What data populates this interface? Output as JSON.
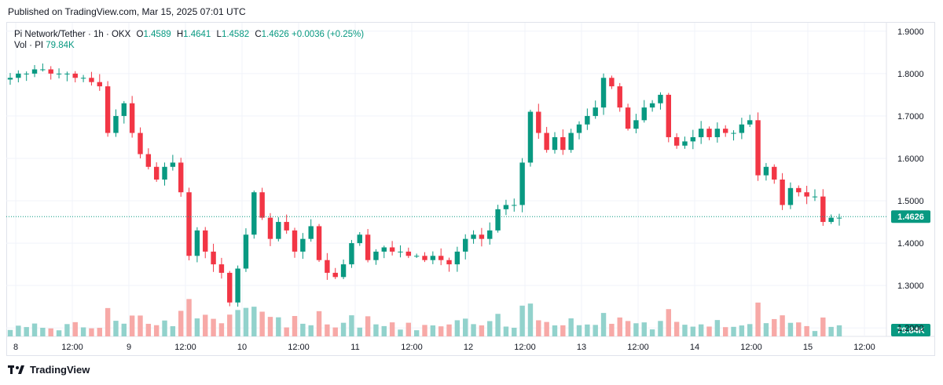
{
  "header": {
    "published": "Published on TradingView.com, Mar 15, 2025 07:01 UTC"
  },
  "legend": {
    "symbol": "Pi Network/Tether · 1h · OKX",
    "open_label": "O",
    "open": "1.4589",
    "high_label": "H",
    "high": "1.4641",
    "low_label": "L",
    "low": "1.4582",
    "close_label": "C",
    "close": "1.4626",
    "change": "+0.0036 (+0.25%)",
    "vol_label": "Vol · PI",
    "vol_value": "79.84K"
  },
  "footer": {
    "brand": "TradingView"
  },
  "colors": {
    "up": "#089981",
    "down": "#f23645",
    "up_vol": "#92d2cc",
    "down_vol": "#f7a9a7",
    "last_price": "#089981"
  },
  "chart_data": {
    "type": "candlestick",
    "y_ticks": [
      "1.9000",
      "1.8000",
      "1.7000",
      "1.6000",
      "1.5000",
      "1.4000",
      "1.3000",
      "1.2000"
    ],
    "y_tick_values": [
      1.9,
      1.8,
      1.7,
      1.6,
      1.5,
      1.4,
      1.3,
      1.2
    ],
    "x_ticks": [
      "8",
      "12:00",
      "9",
      "12:00",
      "10",
      "12:00",
      "11",
      "12:00",
      "12",
      "12:00",
      "13",
      "12:00",
      "14",
      "12:00",
      "15",
      "12:00"
    ],
    "ylim": [
      1.18,
      1.92
    ],
    "last_price": 1.4626,
    "last_price_label": "1.4626",
    "last_volume_label": "79.84K",
    "close_path": [
      1.79,
      1.8,
      1.8,
      1.81,
      1.81,
      1.8,
      1.8,
      1.8,
      1.79,
      1.79,
      1.78,
      1.77,
      1.66,
      1.7,
      1.73,
      1.66,
      1.61,
      1.58,
      1.55,
      1.58,
      1.59,
      1.52,
      1.37,
      1.43,
      1.38,
      1.35,
      1.33,
      1.26,
      1.34,
      1.42,
      1.52,
      1.46,
      1.41,
      1.45,
      1.43,
      1.38,
      1.41,
      1.44,
      1.36,
      1.33,
      1.32,
      1.35,
      1.4,
      1.42,
      1.36,
      1.38,
      1.39,
      1.38,
      1.38,
      1.37,
      1.37,
      1.36,
      1.37,
      1.36,
      1.35,
      1.38,
      1.41,
      1.42,
      1.41,
      1.43,
      1.48,
      1.49,
      1.49,
      1.59,
      1.71,
      1.66,
      1.62,
      1.65,
      1.62,
      1.66,
      1.68,
      1.7,
      1.72,
      1.79,
      1.77,
      1.72,
      1.67,
      1.69,
      1.72,
      1.73,
      1.75,
      1.65,
      1.63,
      1.64,
      1.65,
      1.67,
      1.65,
      1.67,
      1.66,
      1.66,
      1.68,
      1.69,
      1.56,
      1.58,
      1.55,
      1.49,
      1.53,
      1.52,
      1.51,
      1.51,
      1.45,
      1.46,
      1.46
    ],
    "volume_scale_hint": "relative"
  }
}
